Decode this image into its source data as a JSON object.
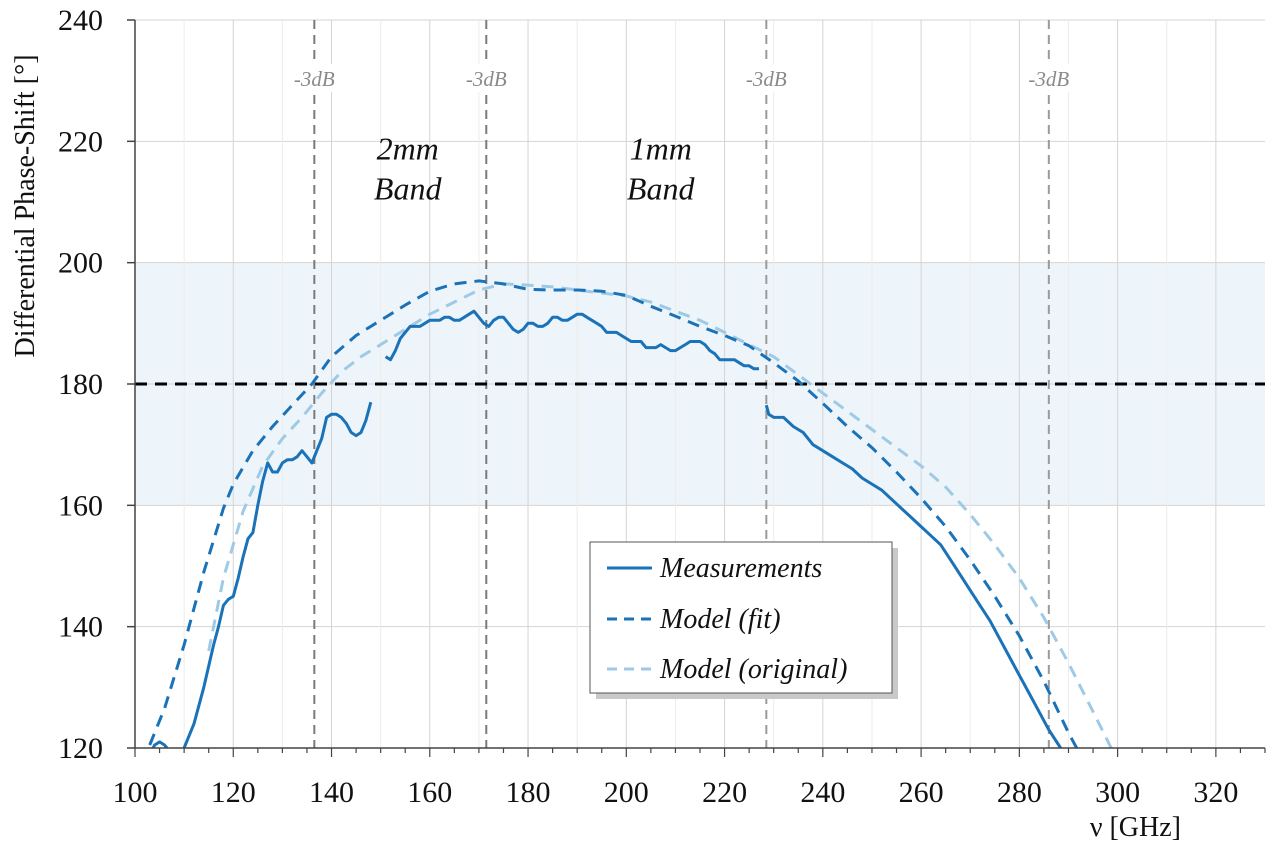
{
  "chart_data": {
    "type": "line",
    "title": "",
    "xlabel": "ν [GHz]",
    "ylabel": "Differential Phase-Shift [°]",
    "xlim": [
      100,
      330
    ],
    "ylim": [
      120,
      240
    ],
    "x_ticks": [
      100,
      120,
      140,
      160,
      180,
      200,
      220,
      240,
      260,
      280,
      300,
      320
    ],
    "y_ticks": [
      120,
      140,
      160,
      180,
      200,
      220,
      240
    ],
    "x_tick_labels": [
      "100",
      "120",
      "140",
      "160",
      "180",
      "200",
      "220",
      "240",
      "260",
      "280",
      "300",
      "320"
    ],
    "y_tick_labels": [
      "120",
      "140",
      "160",
      "180",
      "200",
      "220",
      "240"
    ],
    "grid": true,
    "shaded_band": {
      "y_from": 160,
      "y_to": 200,
      "color": "#eef5fa"
    },
    "reference_line": {
      "y": 180,
      "style": "dashed",
      "color": "#000000"
    },
    "cutoff_markers": [
      {
        "x": 136.5,
        "label": "-3dB"
      },
      {
        "x": 171.5,
        "label": "-3dB"
      },
      {
        "x": 228.5,
        "label": "-3dB"
      },
      {
        "x": 286,
        "label": "-3dB"
      }
    ],
    "band_annotations": [
      {
        "lines": [
          "2mm",
          "Band"
        ],
        "x": 155.5,
        "y": 217
      },
      {
        "lines": [
          "1mm",
          "Band"
        ],
        "x": 207,
        "y": 217
      }
    ],
    "legend": {
      "placement": "lower-center",
      "entries": [
        "Measurements",
        "Model (fit)",
        "Model (original)"
      ]
    },
    "series": [
      {
        "name": "Measurements",
        "style": "solid",
        "color": "#1a72b8",
        "segments": [
          {
            "x": [
              103,
              104,
              105,
              106,
              107,
              108,
              109,
              110,
              112,
              114,
              116,
              117,
              118,
              119,
              120,
              121,
              122,
              123,
              124,
              125,
              126,
              127,
              128,
              129,
              130,
              131,
              132,
              133,
              134,
              135,
              136,
              137,
              138,
              139,
              140,
              141,
              142,
              143,
              144,
              145,
              146,
              147,
              148
            ],
            "y": [
              119,
              120.5,
              121,
              120.5,
              119.5,
              119,
              118.5,
              120,
              124,
              130,
              137,
              140,
              143.5,
              144.5,
              145,
              148,
              151.5,
              154.5,
              155.5,
              160,
              164,
              167,
              165.5,
              165.5,
              167,
              167.5,
              167.5,
              168,
              169,
              168,
              167,
              169,
              171,
              174.5,
              175,
              175,
              174.5,
              173.5,
              172,
              171.5,
              172,
              174,
              177
            ]
          },
          {
            "x": [
              151,
              152,
              153,
              154,
              155,
              156,
              157,
              158,
              159,
              160,
              161,
              162,
              163,
              164,
              165,
              166,
              167,
              168,
              169,
              170,
              171,
              172,
              173,
              174,
              175,
              176,
              177,
              178,
              179,
              180,
              181,
              182,
              183,
              184,
              185,
              186,
              187,
              188,
              189,
              190,
              191,
              192,
              193,
              194,
              195,
              196,
              197,
              198,
              199,
              200,
              201,
              202,
              203,
              204,
              205,
              206,
              207,
              208,
              209,
              210,
              211,
              212,
              213,
              214,
              215,
              216,
              217,
              218,
              219,
              220,
              221,
              222,
              223,
              224,
              225,
              226,
              227
            ],
            "y": [
              184.5,
              184,
              185.5,
              187.5,
              188.5,
              189.5,
              189.5,
              189.5,
              190,
              190.5,
              190.5,
              190.5,
              191,
              191,
              190.5,
              190.5,
              191,
              191.5,
              192,
              191,
              190,
              189.5,
              190.5,
              191,
              191,
              190,
              189,
              188.5,
              189,
              190,
              190,
              189.5,
              189.5,
              190,
              191,
              191,
              190.5,
              190.5,
              191,
              191.5,
              191.5,
              191,
              190.5,
              190,
              189.5,
              188.5,
              188.5,
              188.5,
              188,
              187.5,
              187,
              187,
              187,
              186,
              186,
              186,
              186.5,
              186,
              185.5,
              185.5,
              186,
              186.5,
              187,
              187,
              187,
              186.5,
              185.5,
              185,
              184,
              184,
              184,
              184,
              183.5,
              183,
              183,
              182.5,
              182.5
            ]
          },
          {
            "x": [
              228.5,
              229,
              230,
              232,
              234,
              236,
              238,
              240,
              242,
              244,
              246,
              248,
              250,
              252,
              254,
              256,
              258,
              260,
              262,
              264,
              266,
              268,
              270,
              272,
              274,
              276,
              278,
              280,
              282,
              284,
              286,
              288,
              290
            ],
            "y": [
              176.5,
              175,
              174.5,
              174.5,
              173,
              172,
              170,
              169,
              168,
              167,
              166,
              164.5,
              163.5,
              162.5,
              161,
              159.5,
              158,
              156.5,
              155,
              153.5,
              151,
              148.5,
              146,
              143.5,
              141,
              138,
              135,
              132,
              129,
              126,
              123,
              120.5,
              118
            ]
          }
        ]
      },
      {
        "name": "Model (fit)",
        "style": "dashed",
        "color": "#1a72b8",
        "x": [
          103,
          106,
          110,
          114,
          118,
          120,
          124,
          128,
          132,
          136,
          140,
          145,
          150,
          155,
          160,
          165,
          170,
          175,
          180,
          185,
          190,
          195,
          200,
          205,
          210,
          215,
          220,
          225,
          230,
          235,
          240,
          245,
          250,
          255,
          260,
          265,
          270,
          275,
          280,
          285,
          290,
          293
        ],
        "y": [
          120.5,
          126.5,
          137,
          149,
          159.5,
          163.5,
          169,
          173,
          176.5,
          180,
          184.5,
          188,
          190.5,
          193,
          195.3,
          196.5,
          197,
          196.5,
          195.6,
          195.5,
          195.5,
          195.3,
          194.6,
          192.8,
          191.2,
          189.5,
          188,
          186.3,
          183.5,
          180.5,
          176.8,
          173,
          169.5,
          165.5,
          161.2,
          156.5,
          151,
          145,
          138.5,
          131,
          122.5,
          118
        ]
      },
      {
        "name": "Model (original)",
        "style": "dashed",
        "color": "#9fcae6",
        "x": [
          115,
          118,
          122,
          126,
          130,
          134,
          138,
          142,
          146,
          150,
          155,
          160,
          165,
          170,
          175,
          180,
          185,
          190,
          195,
          200,
          205,
          210,
          215,
          220,
          225,
          230,
          235,
          240,
          245,
          250,
          255,
          260,
          265,
          270,
          275,
          280,
          285,
          290,
          295,
          299
        ],
        "y": [
          136,
          148,
          159,
          166.5,
          171,
          174.5,
          178.5,
          182,
          184.5,
          186.5,
          189,
          191.5,
          193.5,
          195.5,
          196.5,
          196.3,
          196,
          195.5,
          195,
          194.5,
          193.5,
          192,
          190.5,
          188.5,
          186.5,
          184.5,
          181.5,
          178.5,
          175.5,
          172.5,
          169.5,
          166.5,
          163,
          158.5,
          153.5,
          148,
          141.5,
          134,
          126,
          119.5
        ]
      }
    ]
  }
}
